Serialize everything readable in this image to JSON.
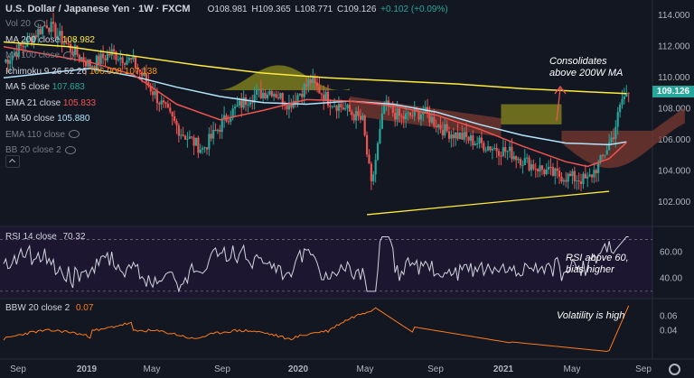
{
  "header": {
    "symbol": "U.S. Dollar / Japanese Yen · 1W · FXCM",
    "o": "O108.981",
    "h": "H109.365",
    "l": "L108.771",
    "c": "C109.126",
    "chg": "+0.102 (+0.09%)"
  },
  "legend": [
    {
      "label": "Vol 20",
      "value": "",
      "color": "#787b86"
    },
    {
      "label": "MA 200 close",
      "value": "108.982",
      "color": "#ffeb3b"
    },
    {
      "label": "MA 100 close",
      "value": "",
      "color": "#787b86"
    },
    {
      "label": "Ichimoku 9 26 52 26",
      "value": "106.908 107.138",
      "color": "#ff9800"
    },
    {
      "label": "MA 5 close",
      "value": "107.683",
      "color": "#26a69a"
    },
    {
      "label": "EMA 21 close",
      "value": "105.833",
      "color": "#ef5350"
    },
    {
      "label": "MA 50 close",
      "value": "105.880",
      "color": "#b3e5fc"
    },
    {
      "label": "EMA 110 close",
      "value": "",
      "color": "#787b86"
    },
    {
      "label": "BB 20 close 2",
      "value": "",
      "color": "#787b86"
    }
  ],
  "annotations": {
    "main": "Consolidates above 200W MA",
    "rsi": "RSI above 60, bias higher",
    "bbw": "Volatility is high"
  },
  "price_badge": "109.126",
  "colors": {
    "up": "#26a69a",
    "down": "#ef5350",
    "ma200": "#ffeb3b",
    "ma50": "#b3e5fc",
    "ema21": "#ef5350",
    "cloud_up": "#8a8a1c",
    "cloud_down": "#7a3a30",
    "rsi": "#d1d4dc",
    "bbw": "#ff7a1a",
    "trend": "#ffeb3b",
    "arrow": "#ef5350"
  },
  "chart_data": [
    {
      "type": "candlestick",
      "title": "U.S. Dollar / Japanese Yen · 1W · FXCM",
      "ylim": [
        100.5,
        115
      ],
      "yticks": [
        102.0,
        104.0,
        106.0,
        108.0,
        110.0,
        112.0,
        114.0
      ],
      "yticklabels": [
        "102.000",
        "104.000",
        "106.000",
        "108.000",
        "110.000",
        "112.000",
        "114.000"
      ],
      "xtick_labels": [
        "Sep",
        "2019",
        "May",
        "Sep",
        "2020",
        "May",
        "Sep",
        "2021",
        "May",
        "Sep"
      ],
      "series": [
        {
          "name": "MA 200 close",
          "points": [
            [
              0,
              112.3
            ],
            [
              30,
              112.0
            ],
            [
              60,
              111.4
            ],
            [
              90,
              110.8
            ],
            [
              120,
              110.3
            ],
            [
              150,
              110.0
            ],
            [
              180,
              109.8
            ],
            [
              210,
              109.6
            ],
            [
              240,
              109.3
            ],
            [
              270,
              109.1
            ],
            [
              288,
              108.98
            ]
          ]
        },
        {
          "name": "MA 50 close",
          "points": [
            [
              0,
              110.0
            ],
            [
              20,
              110.3
            ],
            [
              40,
              110.6
            ],
            [
              60,
              110.1
            ],
            [
              80,
              109.4
            ],
            [
              100,
              108.8
            ],
            [
              120,
              108.4
            ],
            [
              140,
              108.3
            ],
            [
              160,
              108.5
            ],
            [
              180,
              108.3
            ],
            [
              200,
              107.8
            ],
            [
              220,
              107.0
            ],
            [
              240,
              106.3
            ],
            [
              260,
              105.8
            ],
            [
              280,
              105.7
            ],
            [
              288,
              105.88
            ]
          ]
        },
        {
          "name": "EMA 21 close",
          "points": [
            [
              0,
              112.0
            ],
            [
              20,
              111.5
            ],
            [
              40,
              111.0
            ],
            [
              60,
              110.2
            ],
            [
              80,
              108.3
            ],
            [
              100,
              107.3
            ],
            [
              120,
              107.9
            ],
            [
              140,
              108.6
            ],
            [
              160,
              108.5
            ],
            [
              180,
              108.2
            ],
            [
              200,
              107.6
            ],
            [
              220,
              106.7
            ],
            [
              240,
              105.6
            ],
            [
              260,
              104.6
            ],
            [
              270,
              104.3
            ],
            [
              280,
              104.8
            ],
            [
              288,
              105.83
            ]
          ]
        }
      ],
      "trendline": [
        [
          168,
          101.2
        ],
        [
          280,
          102.7
        ]
      ],
      "annotation": "Consolidates above 200W MA"
    },
    {
      "type": "line",
      "title": "RSI 14 close",
      "last_value": "70.32",
      "ylim": [
        25,
        80
      ],
      "yticks": [
        40.0,
        60.0
      ],
      "yticklabels": [
        "40.00",
        "60.00"
      ],
      "annotation": "RSI above 60, bias higher"
    },
    {
      "type": "line",
      "title": "BBW 20 close 2",
      "last_value": "0.07",
      "ylim": [
        0.0,
        0.085
      ],
      "yticks": [
        0.04,
        0.06
      ],
      "yticklabels": [
        "0.04",
        "0.06"
      ],
      "annotation": "Volatility is high"
    }
  ]
}
